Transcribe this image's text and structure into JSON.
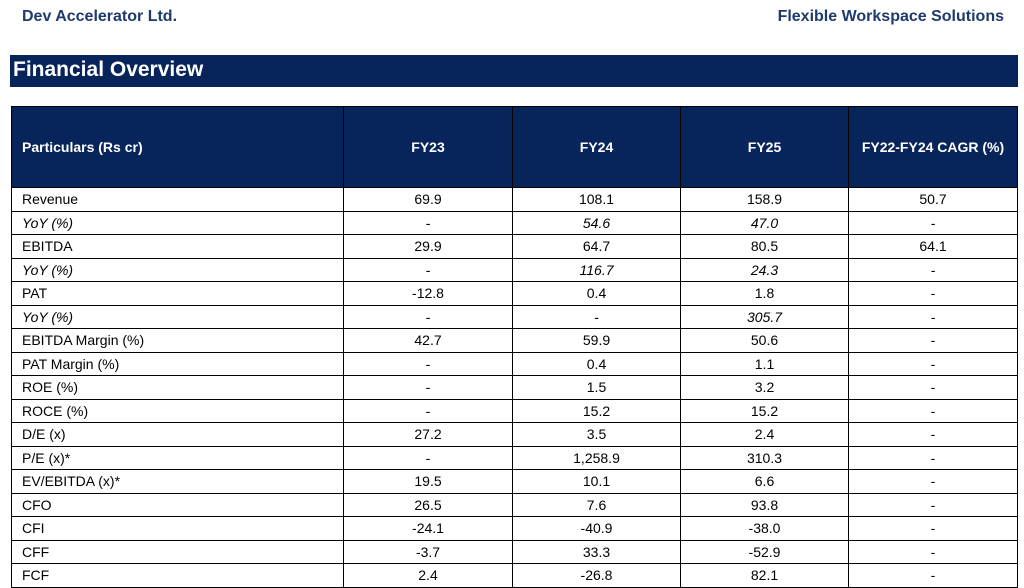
{
  "header": {
    "company": "Dev Accelerator Ltd.",
    "tagline": "Flexible Workspace Solutions"
  },
  "section_title": "Financial Overview",
  "table": {
    "columns": [
      "Particulars (Rs cr)",
      "FY23",
      "FY24",
      "FY25",
      "FY22-FY24 CAGR (%)"
    ],
    "rows": [
      {
        "label": "Revenue",
        "italic": false,
        "values": [
          "69.9",
          "108.1",
          "158.9",
          "50.7"
        ]
      },
      {
        "label": "YoY (%)",
        "italic": true,
        "values": [
          "-",
          "54.6",
          "47.0",
          "-"
        ]
      },
      {
        "label": "EBITDA",
        "italic": false,
        "values": [
          "29.9",
          "64.7",
          "80.5",
          "64.1"
        ]
      },
      {
        "label": "YoY (%)",
        "italic": true,
        "values": [
          "-",
          "116.7",
          "24.3",
          "-"
        ]
      },
      {
        "label": "PAT",
        "italic": false,
        "values": [
          "-12.8",
          "0.4",
          "1.8",
          "-"
        ]
      },
      {
        "label": "YoY (%)",
        "italic": true,
        "values": [
          "-",
          "-",
          "305.7",
          "-"
        ]
      },
      {
        "label": "EBITDA Margin (%)",
        "italic": false,
        "values": [
          "42.7",
          "59.9",
          "50.6",
          "-"
        ]
      },
      {
        "label": "PAT Margin (%)",
        "italic": false,
        "values": [
          "-",
          "0.4",
          "1.1",
          "-"
        ]
      },
      {
        "label": "ROE (%)",
        "italic": false,
        "values": [
          "-",
          "1.5",
          "3.2",
          "-"
        ]
      },
      {
        "label": "ROCE (%)",
        "italic": false,
        "values": [
          "-",
          "15.2",
          "15.2",
          "-"
        ]
      },
      {
        "label": "D/E (x)",
        "italic": false,
        "values": [
          "27.2",
          "3.5",
          "2.4",
          "-"
        ]
      },
      {
        "label": "P/E (x)*",
        "italic": false,
        "values": [
          "-",
          "1,258.9",
          "310.3",
          "-"
        ]
      },
      {
        "label": "EV/EBITDA (x)*",
        "italic": false,
        "values": [
          "19.5",
          "10.1",
          "6.6",
          "-"
        ]
      },
      {
        "label": "CFO",
        "italic": false,
        "values": [
          "26.5",
          "7.6",
          "93.8",
          "-"
        ]
      },
      {
        "label": "CFI",
        "italic": false,
        "values": [
          "-24.1",
          "-40.9",
          "-38.0",
          "-"
        ]
      },
      {
        "label": "CFF",
        "italic": false,
        "values": [
          "-3.7",
          "33.3",
          "-52.9",
          "-"
        ]
      },
      {
        "label": "FCF",
        "italic": false,
        "values": [
          "2.4",
          "-26.8",
          "82.1",
          "-"
        ]
      }
    ]
  }
}
